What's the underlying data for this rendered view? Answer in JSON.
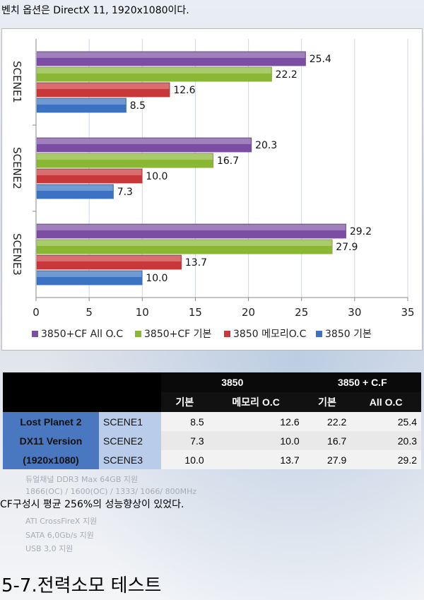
{
  "intro_text": "벤치 옵션은 DirectX 11, 1920x1080이다.",
  "chart_data": {
    "type": "bar",
    "orientation": "horizontal",
    "categories": [
      "SCENE1",
      "SCENE2",
      "SCENE3"
    ],
    "series": [
      {
        "name": "3850+CF All O.C",
        "color": "#7b4ea3",
        "values": [
          25.4,
          20.3,
          29.2
        ]
      },
      {
        "name": "3850+CF 기본",
        "color": "#8ab834",
        "values": [
          22.2,
          16.7,
          27.9
        ]
      },
      {
        "name": "3850 메모리O.C",
        "color": "#c8373a",
        "values": [
          12.6,
          10.0,
          13.7
        ]
      },
      {
        "name": "3850 기본",
        "color": "#3b73c2",
        "values": [
          8.5,
          7.3,
          10.0
        ]
      }
    ],
    "xlim": [
      0,
      35
    ],
    "xticks": [
      "0",
      "5",
      "10",
      "15",
      "20",
      "25",
      "30",
      "35"
    ],
    "grid": true,
    "legend_position": "bottom"
  },
  "table": {
    "group_headers": [
      "3850",
      "3850 + C.F"
    ],
    "sub_headers": [
      "기본",
      "메모리 O.C",
      "기본",
      "All O.C"
    ],
    "row_labels": [
      "Lost Planet 2",
      "DX11 Version",
      "(1920x1080)"
    ],
    "rows": [
      {
        "scene": "SCENE1",
        "values": [
          "8.5",
          "12.6",
          "22.2",
          "25.4"
        ]
      },
      {
        "scene": "SCENE2",
        "values": [
          "7.3",
          "10.0",
          "16.7",
          "20.3"
        ]
      },
      {
        "scene": "SCENE3",
        "values": [
          "10.0",
          "13.7",
          "27.9",
          "29.2"
        ]
      }
    ]
  },
  "background_text": [
    "듀얼채널 DDR3 Max 64GB 지원",
    "1866(OC) / 1600(OC) / 1333/ 1066/ 800MHz",
    "ATI CrossFireX 지원",
    "SATA 6,0Gb/s 지원",
    "USB 3,0 지원"
  ],
  "caption": "CF구성시 평균 256%의 성능향상이 있었다.",
  "section_title": "5-7.전력소모 테스트"
}
